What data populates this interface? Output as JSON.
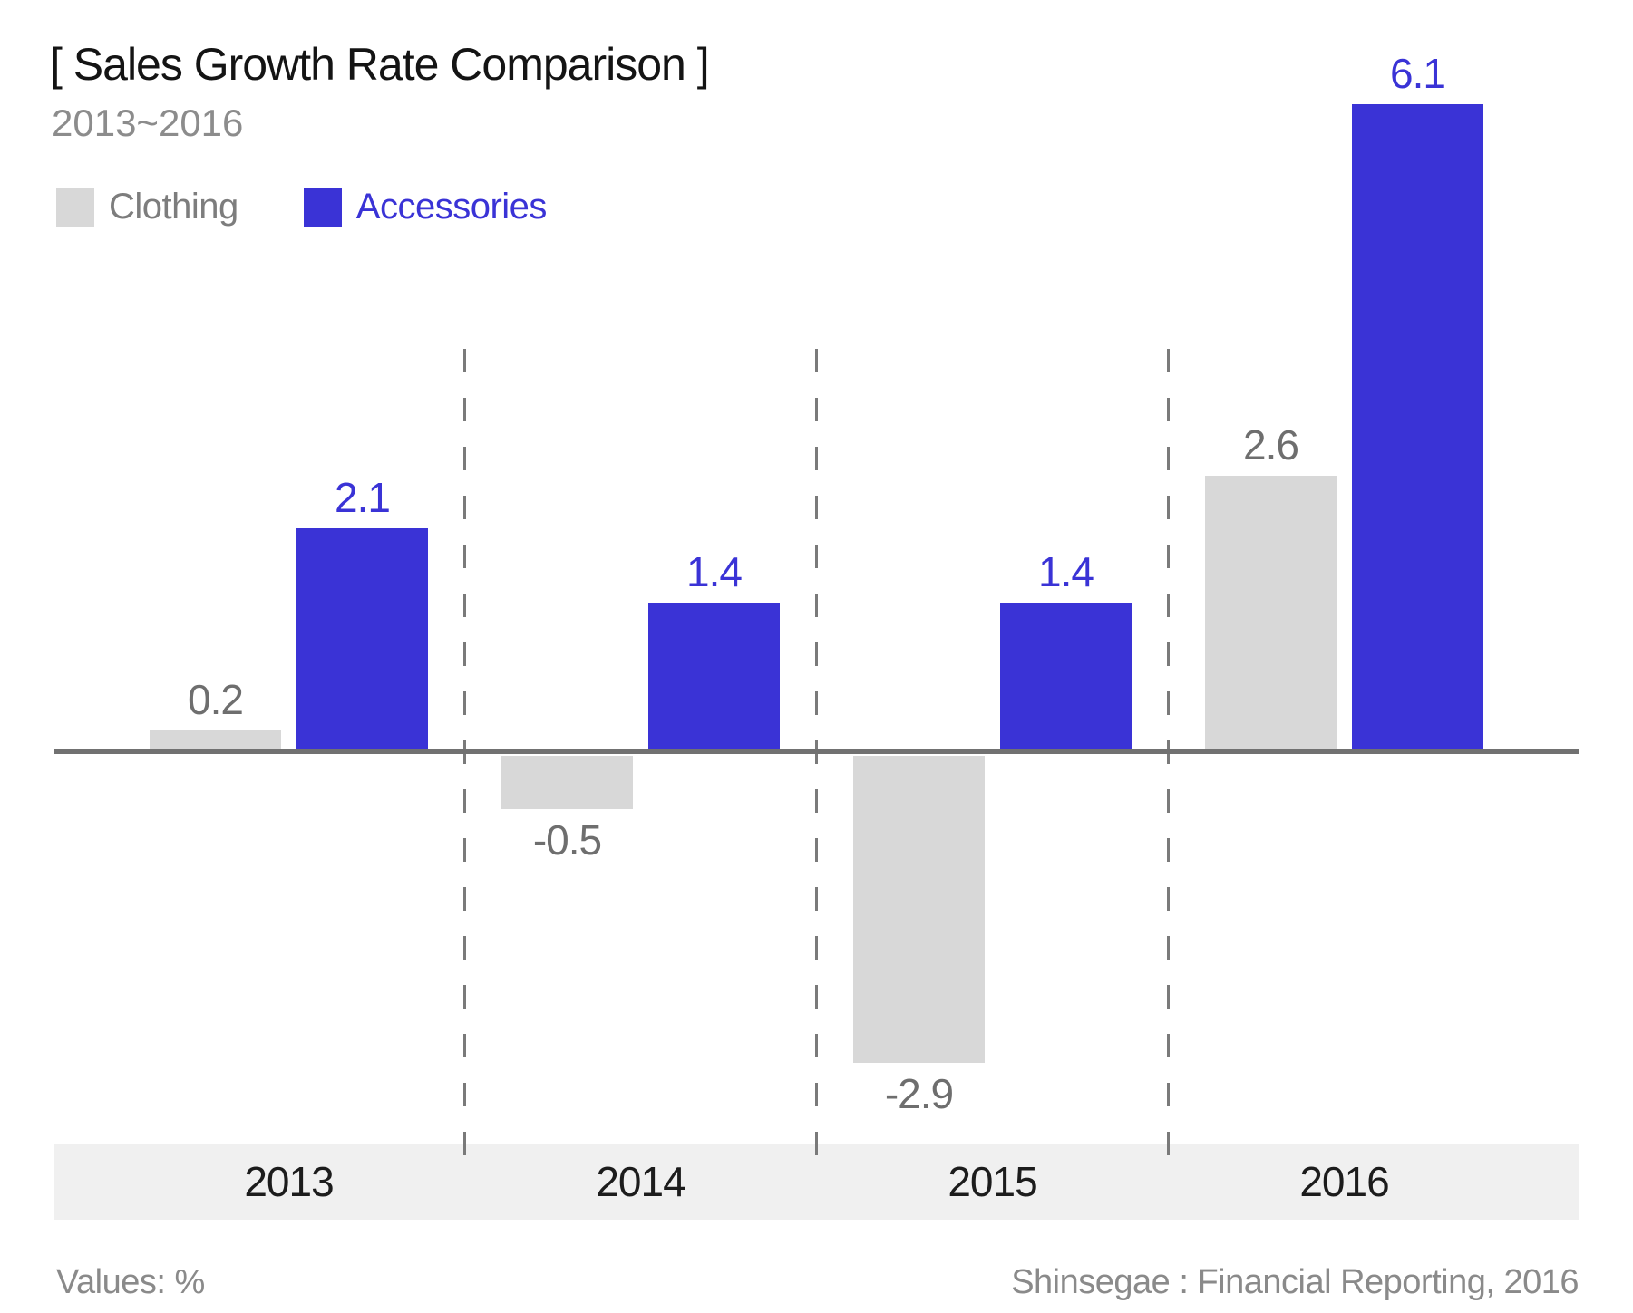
{
  "header": {
    "title": "[ Sales Growth Rate Comparison ]",
    "subtitle": "2013~2016"
  },
  "legend": [
    {
      "label": "Clothing",
      "swatch_color": "#d8d8d8",
      "text_color": "#7d7d7d"
    },
    {
      "label": "Accessories",
      "swatch_color": "#3a33d6",
      "text_color": "#3a33d6"
    }
  ],
  "chart_data": {
    "type": "bar",
    "title": "[ Sales Growth Rate Comparison ]",
    "subtitle": "2013~2016",
    "categories": [
      "2013",
      "2014",
      "2015",
      "2016"
    ],
    "series": [
      {
        "name": "Clothing",
        "values": [
          0.2,
          -0.5,
          -2.9,
          2.6
        ],
        "color": "#d8d8d8",
        "label_color": "#6e6e6e"
      },
      {
        "name": "Accessories",
        "values": [
          2.1,
          1.4,
          1.4,
          6.1
        ],
        "color": "#3a33d6",
        "label_color": "#3a33d6"
      }
    ],
    "units": "%",
    "xlabel": "",
    "ylabel": "",
    "ylim": [
      -3.5,
      6.5
    ],
    "baseline": 0,
    "grid": "dashed vertical separators between year groups",
    "legend_position": "top-left",
    "value_labels": "shown above positive bars and below negative bars"
  },
  "colors": {
    "accent_blue": "#3a33d6",
    "bar_gray": "#d8d8d8",
    "zero_line": "#717171",
    "separator": "#7a7a7a",
    "band_background": "#f0f0f0",
    "title_text": "#141414",
    "muted_text": "#8c8c8c"
  },
  "footer": {
    "values_note": "Values: %",
    "source": "Shinsegae : Financial Reporting, 2016"
  }
}
